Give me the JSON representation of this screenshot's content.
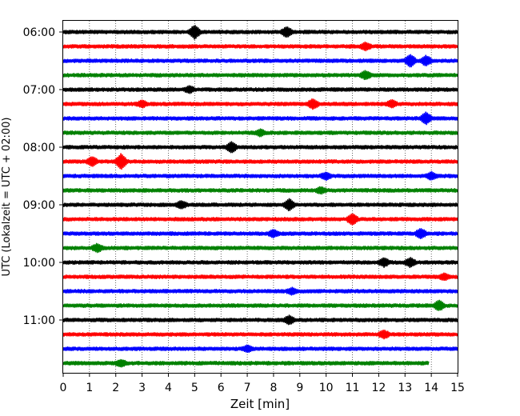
{
  "chart_data": {
    "type": "line",
    "title": "",
    "xlabel": "Zeit  [min]",
    "ylabel": "UTC (Lokalzeit = UTC + 02:00)",
    "xlim": [
      0,
      15
    ],
    "xticks": [
      0,
      1,
      2,
      3,
      4,
      5,
      6,
      7,
      8,
      9,
      10,
      11,
      12,
      13,
      14,
      15
    ],
    "grid": "vertical-dotted",
    "ytick_labels": [
      {
        "label": "06:00",
        "trace": 0
      },
      {
        "label": "07:00",
        "trace": 4
      },
      {
        "label": "08:00",
        "trace": 8
      },
      {
        "label": "09:00",
        "trace": 12
      },
      {
        "label": "10:00",
        "trace": 16
      },
      {
        "label": "11:00",
        "trace": 20
      }
    ],
    "trace_colors": [
      "#000000",
      "#ff0000",
      "#0000ff",
      "#008000"
    ],
    "trace_interval_min": 15,
    "traces": [
      {
        "start": "06:00",
        "end_min": 15,
        "events": [
          [
            5.0,
            1.4
          ],
          [
            8.5,
            1.0
          ]
        ]
      },
      {
        "start": "06:15",
        "end_min": 15,
        "events": [
          [
            11.5,
            0.7
          ]
        ]
      },
      {
        "start": "06:30",
        "end_min": 15,
        "events": [
          [
            13.2,
            1.3
          ],
          [
            13.8,
            1.0
          ]
        ]
      },
      {
        "start": "06:45",
        "end_min": 15,
        "events": [
          [
            11.5,
            0.8
          ]
        ]
      },
      {
        "start": "07:00",
        "end_min": 15,
        "events": [
          [
            4.8,
            0.6
          ]
        ]
      },
      {
        "start": "07:15",
        "end_min": 15,
        "events": [
          [
            3.0,
            0.6
          ],
          [
            9.5,
            1.0
          ],
          [
            12.5,
            0.7
          ]
        ]
      },
      {
        "start": "07:30",
        "end_min": 15,
        "events": [
          [
            13.8,
            1.2
          ]
        ]
      },
      {
        "start": "07:45",
        "end_min": 15,
        "events": [
          [
            7.5,
            0.6
          ]
        ]
      },
      {
        "start": "08:00",
        "end_min": 15,
        "events": [
          [
            6.4,
            1.1
          ]
        ]
      },
      {
        "start": "08:15",
        "end_min": 15,
        "events": [
          [
            1.1,
            0.9
          ],
          [
            2.2,
            1.6
          ]
        ]
      },
      {
        "start": "08:30",
        "end_min": 15,
        "events": [
          [
            10.0,
            0.7
          ],
          [
            14.0,
            0.7
          ]
        ]
      },
      {
        "start": "08:45",
        "end_min": 15,
        "events": [
          [
            9.8,
            0.6
          ]
        ]
      },
      {
        "start": "09:00",
        "end_min": 15,
        "events": [
          [
            8.6,
            1.2
          ],
          [
            4.5,
            0.7
          ]
        ]
      },
      {
        "start": "09:15",
        "end_min": 15,
        "events": [
          [
            11.0,
            1.1
          ]
        ]
      },
      {
        "start": "09:30",
        "end_min": 15,
        "events": [
          [
            8.0,
            0.7
          ],
          [
            13.6,
            1.0
          ]
        ]
      },
      {
        "start": "09:45",
        "end_min": 15,
        "events": [
          [
            1.3,
            0.8
          ]
        ]
      },
      {
        "start": "10:00",
        "end_min": 15,
        "events": [
          [
            12.2,
            0.8
          ],
          [
            13.2,
            0.9
          ]
        ]
      },
      {
        "start": "10:15",
        "end_min": 15,
        "events": [
          [
            14.5,
            0.6
          ]
        ]
      },
      {
        "start": "10:30",
        "end_min": 15,
        "events": [
          [
            8.7,
            0.6
          ]
        ]
      },
      {
        "start": "10:45",
        "end_min": 15,
        "events": [
          [
            14.3,
            1.0
          ]
        ]
      },
      {
        "start": "11:00",
        "end_min": 15,
        "events": [
          [
            8.6,
            0.8
          ]
        ]
      },
      {
        "start": "11:15",
        "end_min": 15,
        "events": [
          [
            12.2,
            0.8
          ]
        ]
      },
      {
        "start": "11:30",
        "end_min": 15,
        "events": [
          [
            7.0,
            0.6
          ]
        ]
      },
      {
        "start": "11:45",
        "end_min": 13.9,
        "events": [
          [
            2.2,
            0.6
          ]
        ]
      }
    ]
  }
}
